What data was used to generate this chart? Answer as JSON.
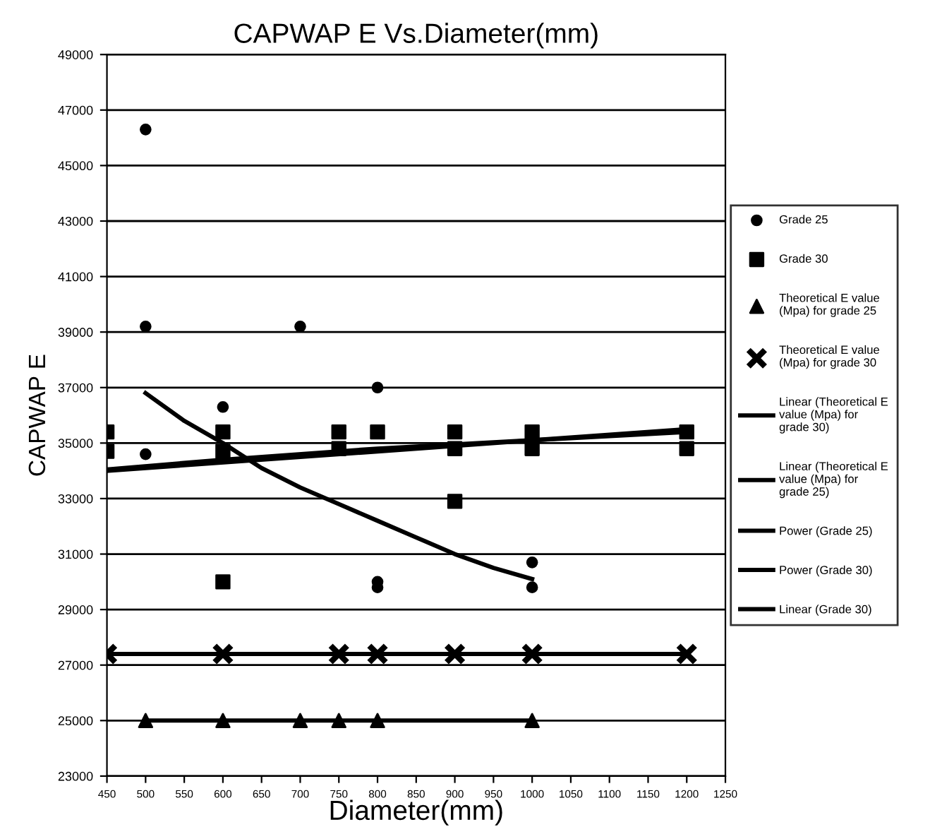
{
  "chart_data": {
    "type": "scatter",
    "title": "CAPWAP E Vs.Diameter(mm)",
    "xlabel": "Diameter(mm)",
    "ylabel": "CAPWAP E",
    "xlim": [
      450,
      1250
    ],
    "xticks": [
      450,
      500,
      550,
      600,
      650,
      700,
      750,
      800,
      850,
      900,
      950,
      1000,
      1050,
      1100,
      1150,
      1200,
      1250
    ],
    "ylim": [
      23000,
      49000
    ],
    "yticks": [
      23000,
      25000,
      27000,
      29000,
      31000,
      33000,
      35000,
      37000,
      39000,
      41000,
      43000,
      45000,
      47000,
      49000
    ],
    "grid": "y",
    "legend": "right",
    "series": [
      {
        "name": "Grade 25",
        "marker": "circle",
        "color": "#000000",
        "x": [
          500,
          500,
          500,
          600,
          700,
          800,
          800,
          800,
          1000,
          1000
        ],
        "values": [
          46300,
          39200,
          34600,
          36300,
          39200,
          37000,
          30000,
          29800,
          30700,
          29800
        ]
      },
      {
        "name": "Grade 30",
        "marker": "square",
        "color": "#000000",
        "x": [
          450,
          450,
          600,
          600,
          600,
          750,
          750,
          800,
          900,
          900,
          900,
          1000,
          1000,
          1200,
          1200
        ],
        "values": [
          35400,
          34700,
          35400,
          34700,
          30000,
          35400,
          34800,
          35400,
          35400,
          34800,
          32900,
          35400,
          34800,
          35400,
          34800
        ]
      },
      {
        "name": "Theoretical E value\n(Mpa) for grade 25",
        "marker": "triangle",
        "color": "#000000",
        "x": [
          500,
          600,
          700,
          750,
          800,
          1000
        ],
        "values": [
          25000,
          25000,
          25000,
          25000,
          25000,
          25000
        ]
      },
      {
        "name": "Theoretical E value\n(Mpa) for grade 30",
        "marker": "cross",
        "color": "#000000",
        "x": [
          450,
          600,
          750,
          800,
          900,
          1000,
          1200
        ],
        "values": [
          27400,
          27400,
          27400,
          27400,
          27400,
          27400,
          27400
        ]
      },
      {
        "name": "Linear (Theoretical E\nvalue (Mpa) for\ngrade 30)",
        "type": "line",
        "marker": "none",
        "color": "#000000",
        "x": [
          450,
          1200
        ],
        "values": [
          27400,
          27400
        ]
      },
      {
        "name": "Linear (Theoretical E\nvalue (Mpa) for\ngrade 25)",
        "type": "line",
        "marker": "none",
        "color": "#000000",
        "x": [
          500,
          1000
        ],
        "values": [
          25000,
          25000
        ]
      },
      {
        "name": "Power (Grade 25)",
        "type": "line",
        "marker": "none",
        "color": "#000000",
        "x": [
          500,
          550,
          600,
          650,
          700,
          750,
          800,
          850,
          900,
          950,
          1000
        ],
        "values": [
          36800,
          35800,
          35000,
          34100,
          33400,
          32800,
          32200,
          31600,
          31000,
          30500,
          30100
        ]
      },
      {
        "name": "Power (Grade 30)",
        "type": "line",
        "marker": "none",
        "color": "#000000",
        "x": [
          450,
          600,
          800,
          1000,
          1200
        ],
        "values": [
          34050,
          34400,
          34800,
          35100,
          35400
        ]
      },
      {
        "name": "Linear (Grade 30)",
        "type": "line",
        "marker": "none",
        "color": "#000000",
        "x": [
          450,
          1200
        ],
        "values": [
          34000,
          35500
        ]
      }
    ]
  }
}
